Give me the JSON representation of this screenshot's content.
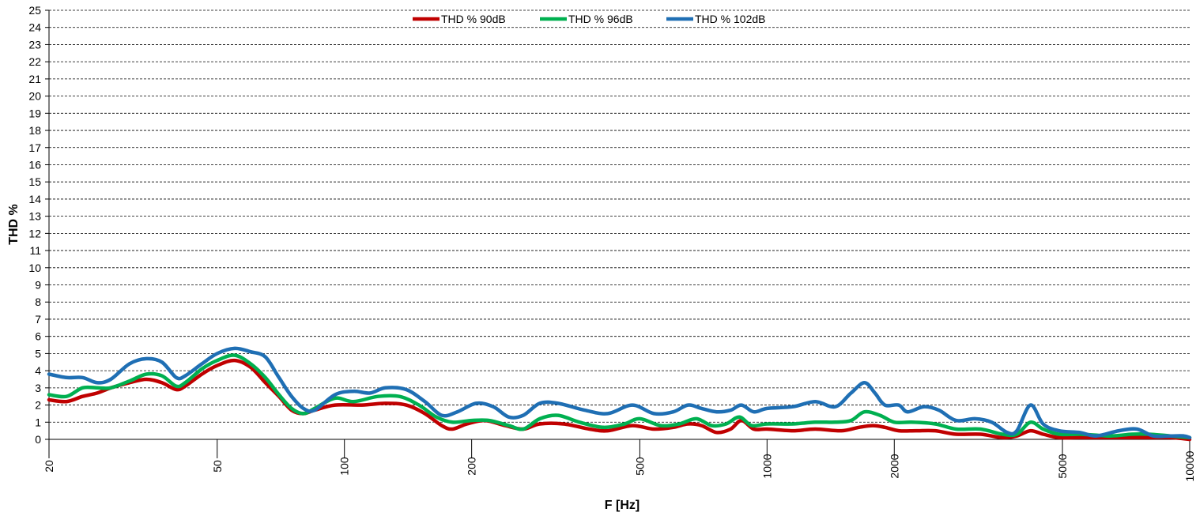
{
  "chart_data": {
    "type": "line",
    "title": "",
    "xlabel": "F [Hz]",
    "ylabel": "THD %",
    "x_scale": "log",
    "xlim": [
      20,
      10000
    ],
    "ylim": [
      0,
      25
    ],
    "x_ticks": [
      20,
      50,
      100,
      200,
      500,
      1000,
      2000,
      5000,
      10000
    ],
    "x_tick_labels": [
      "20",
      "50",
      "100",
      "200",
      "500",
      "1000",
      "2000",
      "5000",
      "10000"
    ],
    "y_ticks": [
      0,
      1,
      2,
      3,
      4,
      5,
      6,
      7,
      8,
      9,
      10,
      11,
      12,
      13,
      14,
      15,
      16,
      17,
      18,
      19,
      20,
      21,
      22,
      23,
      24,
      25
    ],
    "y_tick_labels": [
      "0",
      "1",
      "2",
      "3",
      "4",
      "5",
      "6",
      "7",
      "8",
      "9",
      "10",
      "11",
      "12",
      "13",
      "14",
      "15",
      "16",
      "17",
      "18",
      "19",
      "20",
      "21",
      "22",
      "23",
      "24",
      "25"
    ],
    "grid": "horizontal-dashed",
    "legend_position": "top-center",
    "series": [
      {
        "name": "THD % 90dB",
        "color": "#c00000",
        "points": [
          [
            20,
            2.3
          ],
          [
            22,
            2.2
          ],
          [
            24,
            2.5
          ],
          [
            26,
            2.7
          ],
          [
            28,
            3.0
          ],
          [
            31,
            3.3
          ],
          [
            34,
            3.5
          ],
          [
            37,
            3.3
          ],
          [
            40,
            2.9
          ],
          [
            42,
            3.1
          ],
          [
            46,
            3.8
          ],
          [
            50,
            4.3
          ],
          [
            55,
            4.6
          ],
          [
            60,
            4.2
          ],
          [
            65,
            3.3
          ],
          [
            70,
            2.5
          ],
          [
            75,
            1.7
          ],
          [
            80,
            1.5
          ],
          [
            85,
            1.7
          ],
          [
            95,
            2.0
          ],
          [
            110,
            2.0
          ],
          [
            125,
            2.1
          ],
          [
            140,
            2.0
          ],
          [
            155,
            1.5
          ],
          [
            170,
            0.8
          ],
          [
            180,
            0.6
          ],
          [
            195,
            0.9
          ],
          [
            215,
            1.1
          ],
          [
            240,
            0.8
          ],
          [
            265,
            0.6
          ],
          [
            290,
            0.9
          ],
          [
            330,
            0.9
          ],
          [
            380,
            0.6
          ],
          [
            420,
            0.5
          ],
          [
            480,
            0.8
          ],
          [
            540,
            0.6
          ],
          [
            600,
            0.7
          ],
          [
            650,
            0.9
          ],
          [
            700,
            0.8
          ],
          [
            760,
            0.4
          ],
          [
            820,
            0.6
          ],
          [
            870,
            1.1
          ],
          [
            930,
            0.6
          ],
          [
            1000,
            0.6
          ],
          [
            1150,
            0.5
          ],
          [
            1300,
            0.6
          ],
          [
            1500,
            0.5
          ],
          [
            1650,
            0.7
          ],
          [
            1780,
            0.8
          ],
          [
            1900,
            0.7
          ],
          [
            2050,
            0.5
          ],
          [
            2250,
            0.5
          ],
          [
            2500,
            0.5
          ],
          [
            2800,
            0.3
          ],
          [
            3200,
            0.3
          ],
          [
            3600,
            0.1
          ],
          [
            3900,
            0.2
          ],
          [
            4200,
            0.5
          ],
          [
            4500,
            0.3
          ],
          [
            4900,
            0.1
          ],
          [
            5500,
            0.1
          ],
          [
            6500,
            0.1
          ],
          [
            7300,
            0.1
          ],
          [
            8000,
            0.1
          ],
          [
            9000,
            0.1
          ],
          [
            10000,
            0.0
          ]
        ]
      },
      {
        "name": "THD % 96dB",
        "color": "#00b050",
        "points": [
          [
            20,
            2.6
          ],
          [
            22,
            2.5
          ],
          [
            24,
            3.0
          ],
          [
            26,
            3.0
          ],
          [
            28,
            3.0
          ],
          [
            31,
            3.4
          ],
          [
            34,
            3.8
          ],
          [
            37,
            3.7
          ],
          [
            40,
            3.1
          ],
          [
            42,
            3.3
          ],
          [
            46,
            4.1
          ],
          [
            50,
            4.6
          ],
          [
            55,
            4.9
          ],
          [
            60,
            4.4
          ],
          [
            65,
            3.6
          ],
          [
            70,
            2.6
          ],
          [
            75,
            1.8
          ],
          [
            80,
            1.5
          ],
          [
            85,
            1.8
          ],
          [
            95,
            2.4
          ],
          [
            105,
            2.2
          ],
          [
            120,
            2.5
          ],
          [
            135,
            2.5
          ],
          [
            150,
            2.0
          ],
          [
            165,
            1.3
          ],
          [
            180,
            1.0
          ],
          [
            200,
            1.1
          ],
          [
            220,
            1.1
          ],
          [
            245,
            0.8
          ],
          [
            265,
            0.6
          ],
          [
            290,
            1.2
          ],
          [
            320,
            1.4
          ],
          [
            360,
            1.0
          ],
          [
            410,
            0.7
          ],
          [
            460,
            0.9
          ],
          [
            500,
            1.2
          ],
          [
            560,
            0.8
          ],
          [
            620,
            0.9
          ],
          [
            680,
            1.2
          ],
          [
            740,
            0.8
          ],
          [
            800,
            0.9
          ],
          [
            860,
            1.3
          ],
          [
            920,
            0.8
          ],
          [
            1000,
            0.9
          ],
          [
            1150,
            0.9
          ],
          [
            1300,
            1.0
          ],
          [
            1450,
            1.0
          ],
          [
            1580,
            1.1
          ],
          [
            1700,
            1.6
          ],
          [
            1850,
            1.4
          ],
          [
            2000,
            1.0
          ],
          [
            2200,
            1.0
          ],
          [
            2500,
            0.9
          ],
          [
            2800,
            0.6
          ],
          [
            3200,
            0.6
          ],
          [
            3600,
            0.3
          ],
          [
            3900,
            0.3
          ],
          [
            4200,
            1.0
          ],
          [
            4500,
            0.6
          ],
          [
            4900,
            0.3
          ],
          [
            5500,
            0.3
          ],
          [
            6500,
            0.2
          ],
          [
            7300,
            0.3
          ],
          [
            8000,
            0.3
          ],
          [
            9000,
            0.2
          ],
          [
            10000,
            0.1
          ]
        ]
      },
      {
        "name": "THD % 102dB",
        "color": "#1f6fb4",
        "points": [
          [
            20,
            3.8
          ],
          [
            22,
            3.6
          ],
          [
            24,
            3.6
          ],
          [
            26,
            3.3
          ],
          [
            28,
            3.5
          ],
          [
            31,
            4.4
          ],
          [
            34,
            4.7
          ],
          [
            37,
            4.5
          ],
          [
            40,
            3.6
          ],
          [
            42,
            3.7
          ],
          [
            46,
            4.4
          ],
          [
            50,
            5.0
          ],
          [
            55,
            5.3
          ],
          [
            60,
            5.1
          ],
          [
            65,
            4.8
          ],
          [
            70,
            3.6
          ],
          [
            75,
            2.5
          ],
          [
            80,
            1.8
          ],
          [
            85,
            1.7
          ],
          [
            95,
            2.6
          ],
          [
            105,
            2.8
          ],
          [
            115,
            2.7
          ],
          [
            125,
            3.0
          ],
          [
            140,
            2.9
          ],
          [
            155,
            2.2
          ],
          [
            170,
            1.4
          ],
          [
            185,
            1.6
          ],
          [
            205,
            2.1
          ],
          [
            225,
            1.9
          ],
          [
            245,
            1.3
          ],
          [
            265,
            1.4
          ],
          [
            290,
            2.1
          ],
          [
            320,
            2.1
          ],
          [
            370,
            1.7
          ],
          [
            420,
            1.5
          ],
          [
            480,
            2.0
          ],
          [
            540,
            1.5
          ],
          [
            600,
            1.6
          ],
          [
            650,
            2.0
          ],
          [
            700,
            1.8
          ],
          [
            760,
            1.6
          ],
          [
            820,
            1.7
          ],
          [
            870,
            2.0
          ],
          [
            930,
            1.6
          ],
          [
            1000,
            1.8
          ],
          [
            1150,
            1.9
          ],
          [
            1300,
            2.2
          ],
          [
            1450,
            1.9
          ],
          [
            1580,
            2.7
          ],
          [
            1700,
            3.3
          ],
          [
            1800,
            2.7
          ],
          [
            1900,
            2.0
          ],
          [
            2050,
            2.0
          ],
          [
            2150,
            1.6
          ],
          [
            2350,
            1.9
          ],
          [
            2550,
            1.7
          ],
          [
            2800,
            1.1
          ],
          [
            3100,
            1.2
          ],
          [
            3400,
            1.0
          ],
          [
            3700,
            0.4
          ],
          [
            3900,
            0.5
          ],
          [
            4200,
            2.0
          ],
          [
            4500,
            0.9
          ],
          [
            4900,
            0.5
          ],
          [
            5500,
            0.4
          ],
          [
            6000,
            0.2
          ],
          [
            6800,
            0.5
          ],
          [
            7500,
            0.6
          ],
          [
            8200,
            0.2
          ],
          [
            9000,
            0.2
          ],
          [
            9700,
            0.2
          ],
          [
            10000,
            0.1
          ]
        ]
      }
    ]
  }
}
